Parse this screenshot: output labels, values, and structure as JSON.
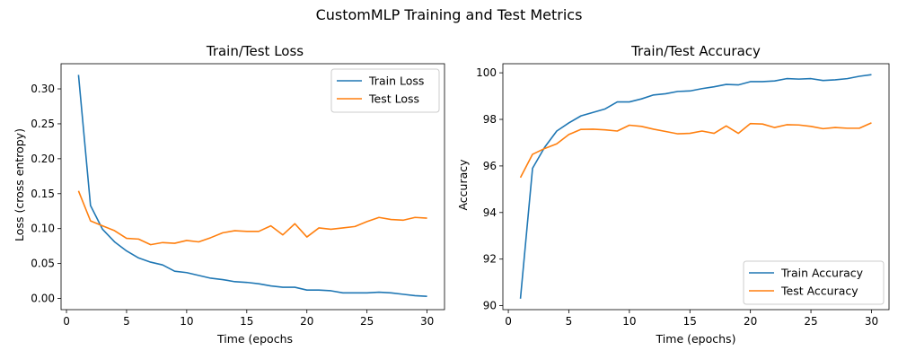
{
  "colors": {
    "train": "#1f77b4",
    "test": "#ff7f0e"
  },
  "chart_data": {
    "title": "CustomMLP Training and Test Metrics",
    "charts": [
      {
        "type": "line",
        "title": "Train/Test Loss",
        "xlabel": "Time (epochs",
        "ylabel": "Loss (cross entropy)",
        "xlim": [
          -0.45,
          31.45
        ],
        "ylim": [
          -0.016,
          0.336
        ],
        "xticks": [
          0,
          5,
          10,
          15,
          20,
          25,
          30
        ],
        "yticks": [
          0.0,
          0.05,
          0.1,
          0.15,
          0.2,
          0.25,
          0.3
        ],
        "ytick_decimals": 2,
        "legend": "top-right",
        "grid": false,
        "x": [
          1,
          2,
          3,
          4,
          5,
          6,
          7,
          8,
          9,
          10,
          11,
          12,
          13,
          14,
          15,
          16,
          17,
          18,
          19,
          20,
          21,
          22,
          23,
          24,
          25,
          26,
          27,
          28,
          29,
          30
        ],
        "series": [
          {
            "name": "Train Loss",
            "color_key": "train",
            "values": [
              0.32,
              0.133,
              0.099,
              0.081,
              0.068,
              0.058,
              0.052,
              0.048,
              0.039,
              0.037,
              0.033,
              0.029,
              0.027,
              0.024,
              0.023,
              0.021,
              0.018,
              0.016,
              0.016,
              0.012,
              0.012,
              0.011,
              0.008,
              0.008,
              0.008,
              0.009,
              0.008,
              0.006,
              0.004,
              0.003
            ]
          },
          {
            "name": "Test Loss",
            "color_key": "test",
            "values": [
              0.154,
              0.111,
              0.104,
              0.097,
              0.086,
              0.085,
              0.077,
              0.08,
              0.079,
              0.083,
              0.081,
              0.087,
              0.094,
              0.097,
              0.096,
              0.096,
              0.104,
              0.091,
              0.107,
              0.088,
              0.101,
              0.099,
              0.101,
              0.103,
              0.11,
              0.116,
              0.113,
              0.112,
              0.116,
              0.115
            ]
          }
        ]
      },
      {
        "type": "line",
        "title": "Train/Test Accuracy",
        "xlabel": "Time (epochs)",
        "ylabel": "Accuracy",
        "xlim": [
          -0.45,
          31.45
        ],
        "ylim": [
          89.83,
          100.39
        ],
        "xticks": [
          0,
          5,
          10,
          15,
          20,
          25,
          30
        ],
        "yticks": [
          90,
          92,
          94,
          96,
          98,
          100
        ],
        "ytick_decimals": 0,
        "legend": "bottom-right",
        "grid": false,
        "x": [
          1,
          2,
          3,
          4,
          5,
          6,
          7,
          8,
          9,
          10,
          11,
          12,
          13,
          14,
          15,
          16,
          17,
          18,
          19,
          20,
          21,
          22,
          23,
          24,
          25,
          26,
          27,
          28,
          29,
          30
        ],
        "series": [
          {
            "name": "Train Accuracy",
            "color_key": "train",
            "values": [
              90.3,
              95.9,
              96.8,
              97.5,
              97.85,
              98.15,
              98.3,
              98.45,
              98.75,
              98.75,
              98.88,
              99.05,
              99.1,
              99.2,
              99.22,
              99.32,
              99.4,
              99.5,
              99.48,
              99.62,
              99.62,
              99.65,
              99.75,
              99.73,
              99.75,
              99.67,
              99.7,
              99.75,
              99.85,
              99.92
            ]
          },
          {
            "name": "Test Accuracy",
            "color_key": "test",
            "values": [
              95.5,
              96.5,
              96.75,
              96.95,
              97.35,
              97.57,
              97.58,
              97.55,
              97.5,
              97.75,
              97.7,
              97.58,
              97.48,
              97.38,
              97.4,
              97.5,
              97.4,
              97.72,
              97.4,
              97.82,
              97.8,
              97.65,
              97.77,
              97.76,
              97.7,
              97.6,
              97.65,
              97.62,
              97.62,
              97.85
            ]
          }
        ]
      }
    ]
  }
}
